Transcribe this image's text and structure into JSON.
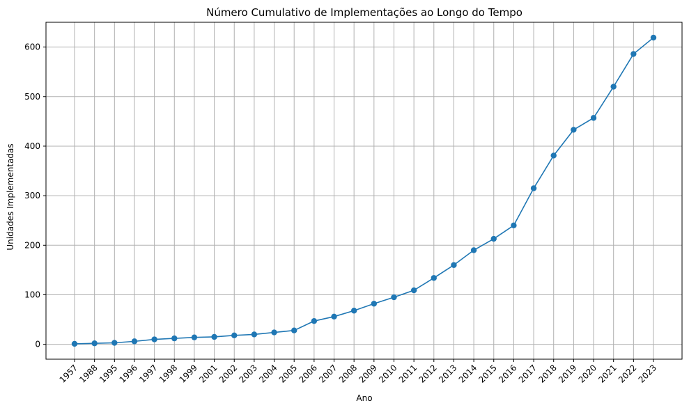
{
  "chart_data": {
    "type": "line",
    "title": "Número Cumulativo de Implementações ao Longo do Tempo",
    "xlabel": "Ano",
    "ylabel": "Unidades Implementadas",
    "categories": [
      "1957",
      "1988",
      "1995",
      "1996",
      "1997",
      "1998",
      "1999",
      "2001",
      "2002",
      "2003",
      "2004",
      "2005",
      "2006",
      "2007",
      "2008",
      "2009",
      "2010",
      "2011",
      "2012",
      "2013",
      "2014",
      "2015",
      "2016",
      "2017",
      "2018",
      "2019",
      "2020",
      "2021",
      "2022",
      "2023"
    ],
    "series": [
      {
        "name": "Unidades Implementadas",
        "color": "#1f77b4",
        "marker": "circle",
        "values": [
          1,
          2,
          3,
          6,
          10,
          12,
          14,
          15,
          18,
          20,
          24,
          28,
          47,
          56,
          68,
          82,
          95,
          109,
          134,
          160,
          190,
          213,
          240,
          315,
          381,
          433,
          457,
          520,
          586,
          619
        ]
      }
    ],
    "ylim": [
      -30,
      650
    ],
    "yticks": [
      0,
      100,
      200,
      300,
      400,
      500,
      600
    ],
    "grid": true
  }
}
